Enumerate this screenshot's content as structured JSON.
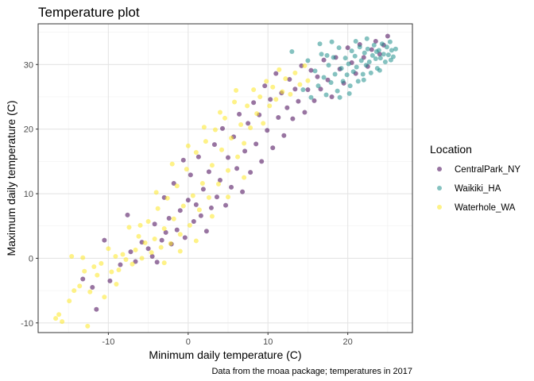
{
  "chart_data": {
    "type": "scatter",
    "title": "Temperature plot",
    "xlabel": "Minimum daily temperature (C)",
    "ylabel": "Maximum daily temperature (C)",
    "caption": "Data from the rnoaa package; temperatures in 2017",
    "xlim": [
      -18.8,
      28.1
    ],
    "ylim": [
      -11.5,
      36.3
    ],
    "x_ticks": [
      -10,
      0,
      10,
      20
    ],
    "x_tick_labels": [
      "-10",
      "0",
      "10",
      "20"
    ],
    "y_ticks": [
      -10,
      0,
      10,
      20,
      30
    ],
    "y_tick_labels": [
      "-10",
      "0",
      "10",
      "20",
      "30"
    ],
    "grid": true,
    "legend": {
      "title": "Location",
      "position": "right"
    },
    "series": [
      {
        "name": "CentralPark_NY",
        "color": "#440154",
        "points": [
          [
            -13.2,
            -3.2
          ],
          [
            -12.0,
            -4.5
          ],
          [
            -11.5,
            -7.9
          ],
          [
            -10.5,
            2.8
          ],
          [
            -9.8,
            -3.5
          ],
          [
            -8.5,
            -1.0
          ],
          [
            -7.6,
            6.7
          ],
          [
            -7.2,
            1.0
          ],
          [
            -6.6,
            -0.5
          ],
          [
            -5.8,
            2.5
          ],
          [
            -5.0,
            1.5
          ],
          [
            -4.5,
            0.3
          ],
          [
            -4.2,
            5.3
          ],
          [
            -3.9,
            -0.6
          ],
          [
            -3.3,
            2.8
          ],
          [
            -3.0,
            9.4
          ],
          [
            -2.8,
            4.0
          ],
          [
            -2.4,
            6.2
          ],
          [
            -2.1,
            2.2
          ],
          [
            -1.8,
            11.6
          ],
          [
            -1.4,
            4.4
          ],
          [
            -1.0,
            7.4
          ],
          [
            -0.6,
            15.2
          ],
          [
            -0.4,
            3.2
          ],
          [
            0.0,
            9.0
          ],
          [
            0.3,
            12.9
          ],
          [
            0.7,
            5.7
          ],
          [
            1.0,
            8.3
          ],
          [
            1.3,
            15.7
          ],
          [
            1.6,
            6.6
          ],
          [
            1.9,
            10.7
          ],
          [
            2.3,
            4.2
          ],
          [
            2.6,
            13.4
          ],
          [
            2.9,
            7.8
          ],
          [
            3.3,
            17.6
          ],
          [
            3.6,
            9.5
          ],
          [
            4.0,
            12.1
          ],
          [
            4.3,
            20.1
          ],
          [
            4.7,
            8.2
          ],
          [
            5.0,
            15.6
          ],
          [
            5.4,
            11.0
          ],
          [
            5.7,
            18.8
          ],
          [
            6.1,
            13.9
          ],
          [
            6.4,
            22.3
          ],
          [
            6.8,
            10.3
          ],
          [
            7.1,
            16.6
          ],
          [
            7.5,
            20.9
          ],
          [
            7.8,
            13.3
          ],
          [
            8.2,
            24.1
          ],
          [
            8.5,
            17.7
          ],
          [
            8.9,
            22.2
          ],
          [
            9.2,
            15.0
          ],
          [
            9.6,
            26.7
          ],
          [
            9.9,
            19.8
          ],
          [
            10.3,
            24.6
          ],
          [
            10.6,
            17.1
          ],
          [
            11.0,
            28.6
          ],
          [
            11.3,
            21.8
          ],
          [
            11.7,
            25.6
          ],
          [
            12.0,
            19.0
          ],
          [
            12.4,
            23.3
          ],
          [
            12.7,
            27.7
          ],
          [
            13.1,
            21.6
          ],
          [
            13.4,
            26.2
          ],
          [
            13.8,
            24.3
          ],
          [
            14.2,
            29.8
          ],
          [
            14.6,
            22.6
          ],
          [
            15.0,
            26.1
          ],
          [
            15.4,
            29.1
          ],
          [
            15.8,
            24.4
          ],
          [
            16.2,
            28.1
          ],
          [
            16.6,
            26.2
          ],
          [
            17.0,
            30.7
          ],
          [
            17.5,
            27.6
          ],
          [
            18.0,
            25.0
          ],
          [
            18.5,
            31.1
          ],
          [
            19.0,
            29.3
          ],
          [
            19.5,
            27.1
          ],
          [
            20.0,
            32.6
          ],
          [
            20.5,
            30.3
          ],
          [
            21.0,
            28.6
          ],
          [
            21.5,
            33.1
          ],
          [
            22.0,
            31.1
          ],
          [
            22.5,
            29.7
          ],
          [
            23.0,
            32.3
          ],
          [
            23.5,
            33.6
          ],
          [
            24.0,
            31.6
          ],
          [
            24.5,
            33.0
          ],
          [
            25.0,
            34.4
          ]
        ]
      },
      {
        "name": "Waikiki_HA",
        "color": "#21908C",
        "points": [
          [
            13.0,
            32.0
          ],
          [
            14.4,
            26.1
          ],
          [
            15.0,
            30.6
          ],
          [
            15.4,
            24.9
          ],
          [
            15.9,
            29.0
          ],
          [
            16.3,
            26.7
          ],
          [
            16.7,
            31.6
          ],
          [
            17.0,
            28.0
          ],
          [
            17.3,
            25.3
          ],
          [
            17.6,
            29.9
          ],
          [
            17.9,
            27.2
          ],
          [
            18.2,
            31.1
          ],
          [
            18.4,
            28.5
          ],
          [
            18.7,
            25.9
          ],
          [
            18.9,
            32.6
          ],
          [
            19.2,
            29.4
          ],
          [
            19.4,
            27.4
          ],
          [
            19.7,
            31.0
          ],
          [
            19.9,
            28.4
          ],
          [
            20.1,
            30.1
          ],
          [
            20.3,
            26.7
          ],
          [
            20.5,
            32.1
          ],
          [
            20.7,
            28.9
          ],
          [
            20.9,
            31.3
          ],
          [
            21.1,
            29.6
          ],
          [
            21.3,
            27.4
          ],
          [
            21.5,
            32.7
          ],
          [
            21.7,
            30.6
          ],
          [
            21.9,
            28.5
          ],
          [
            22.1,
            31.8
          ],
          [
            22.3,
            29.9
          ],
          [
            22.5,
            32.4
          ],
          [
            22.7,
            30.4
          ],
          [
            22.9,
            28.7
          ],
          [
            23.1,
            31.4
          ],
          [
            23.3,
            33.0
          ],
          [
            23.5,
            30.9
          ],
          [
            23.7,
            29.4
          ],
          [
            23.9,
            32.2
          ],
          [
            24.1,
            31.0
          ],
          [
            24.3,
            33.2
          ],
          [
            24.5,
            31.6
          ],
          [
            24.7,
            30.4
          ],
          [
            24.9,
            32.7
          ],
          [
            25.1,
            31.5
          ],
          [
            25.3,
            33.5
          ],
          [
            25.5,
            32.2
          ],
          [
            25.7,
            31.2
          ],
          [
            26.0,
            32.4
          ],
          [
            22.4,
            34.0
          ],
          [
            21.0,
            33.6
          ],
          [
            16.5,
            33.2
          ],
          [
            19.0,
            24.9
          ],
          [
            20.2,
            25.5
          ],
          [
            18.0,
            33.5
          ],
          [
            24.0,
            29.1
          ],
          [
            22.0,
            27.6
          ],
          [
            23.6,
            32.0
          ],
          [
            25.4,
            30.7
          ],
          [
            17.4,
            31.4
          ]
        ]
      },
      {
        "name": "Waterhole_WA",
        "color": "#FDE725",
        "points": [
          [
            -16.6,
            -9.3
          ],
          [
            -16.2,
            -8.7
          ],
          [
            -15.8,
            -9.8
          ],
          [
            -14.9,
            -6.6
          ],
          [
            -14.3,
            -5.0
          ],
          [
            -13.6,
            -4.3
          ],
          [
            -13.2,
            0.1
          ],
          [
            -12.6,
            -10.5
          ],
          [
            -12.3,
            -5.2
          ],
          [
            -11.8,
            -1.3
          ],
          [
            -11.4,
            -2.6
          ],
          [
            -10.9,
            -0.8
          ],
          [
            -10.5,
            -6.0
          ],
          [
            -10.0,
            1.5
          ],
          [
            -9.6,
            -2.1
          ],
          [
            -9.1,
            0.3
          ],
          [
            -8.7,
            -1.8
          ],
          [
            -8.2,
            0.6
          ],
          [
            -7.8,
            -0.2
          ],
          [
            -7.4,
            4.8
          ],
          [
            -7.0,
            -0.9
          ],
          [
            -6.6,
            1.3
          ],
          [
            -6.2,
            3.4
          ],
          [
            -5.8,
            0.0
          ],
          [
            -5.4,
            2.4
          ],
          [
            -5.0,
            5.7
          ],
          [
            -4.6,
            0.9
          ],
          [
            -4.2,
            3.0
          ],
          [
            -3.8,
            7.7
          ],
          [
            -3.4,
            1.7
          ],
          [
            -3.0,
            4.6
          ],
          [
            -2.6,
            9.3
          ],
          [
            -2.2,
            2.3
          ],
          [
            -1.8,
            6.1
          ],
          [
            -1.4,
            11.2
          ],
          [
            -1.0,
            3.7
          ],
          [
            -0.6,
            8.1
          ],
          [
            -0.2,
            13.8
          ],
          [
            0.2,
            5.1
          ],
          [
            0.6,
            9.7
          ],
          [
            1.0,
            16.4
          ],
          [
            1.4,
            7.5
          ],
          [
            1.8,
            11.6
          ],
          [
            2.2,
            18.1
          ],
          [
            2.6,
            9.4
          ],
          [
            3.0,
            14.4
          ],
          [
            3.4,
            19.9
          ],
          [
            3.8,
            11.5
          ],
          [
            4.2,
            16.8
          ],
          [
            4.6,
            21.7
          ],
          [
            5.0,
            13.6
          ],
          [
            5.4,
            18.6
          ],
          [
            5.8,
            24.2
          ],
          [
            6.2,
            15.7
          ],
          [
            6.6,
            20.7
          ],
          [
            7.0,
            17.8
          ],
          [
            7.4,
            23.6
          ],
          [
            7.8,
            20.2
          ],
          [
            8.2,
            26.1
          ],
          [
            8.6,
            22.4
          ],
          [
            9.0,
            25.0
          ],
          [
            9.4,
            20.9
          ],
          [
            9.8,
            27.4
          ],
          [
            10.2,
            23.6
          ],
          [
            10.6,
            26.5
          ],
          [
            11.0,
            24.6
          ],
          [
            11.4,
            29.2
          ],
          [
            11.8,
            25.8
          ],
          [
            12.2,
            27.8
          ],
          [
            12.8,
            25.4
          ],
          [
            13.4,
            28.7
          ],
          [
            14.0,
            26.9
          ],
          [
            14.6,
            29.8
          ],
          [
            15.0,
            27.5
          ],
          [
            -14.6,
            0.3
          ],
          [
            -13.0,
            -2.0
          ],
          [
            -9.0,
            -4.0
          ],
          [
            -6.0,
            5.1
          ],
          [
            -4.0,
            10.2
          ],
          [
            -2.0,
            14.6
          ],
          [
            0.0,
            17.4
          ],
          [
            2.0,
            20.3
          ],
          [
            4.0,
            22.6
          ],
          [
            6.0,
            26.0
          ],
          [
            -3.0,
            -0.7
          ],
          [
            -1.0,
            1.1
          ],
          [
            1.0,
            2.7
          ],
          [
            3.0,
            6.5
          ],
          [
            5.0,
            9.5
          ],
          [
            7.0,
            12.5
          ]
        ]
      }
    ]
  }
}
